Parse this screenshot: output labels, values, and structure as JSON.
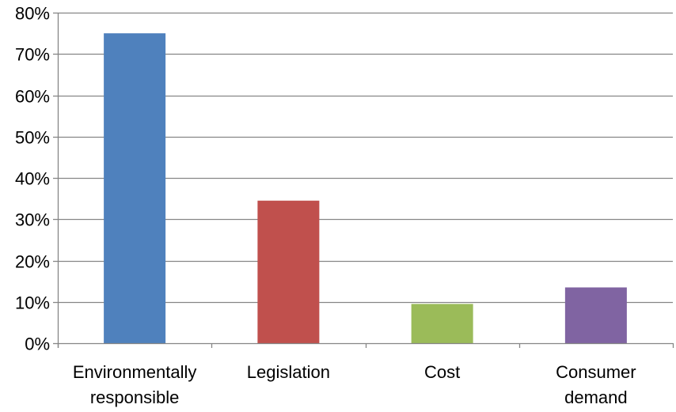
{
  "chart_data": {
    "type": "bar",
    "categories": [
      [
        "Environmentally",
        "responsible"
      ],
      [
        "Legislation"
      ],
      [
        "Cost"
      ],
      [
        "Consumer",
        "demand"
      ]
    ],
    "values": [
      75,
      34.5,
      9.5,
      13.5
    ],
    "colors": [
      "#4F81BD",
      "#C0504D",
      "#9BBB59",
      "#8064A2"
    ],
    "yticks": [
      "0%",
      "10%",
      "20%",
      "30%",
      "40%",
      "50%",
      "60%",
      "70%",
      "80%"
    ],
    "ylim": [
      0,
      80
    ],
    "grid": true,
    "legend": "none"
  }
}
